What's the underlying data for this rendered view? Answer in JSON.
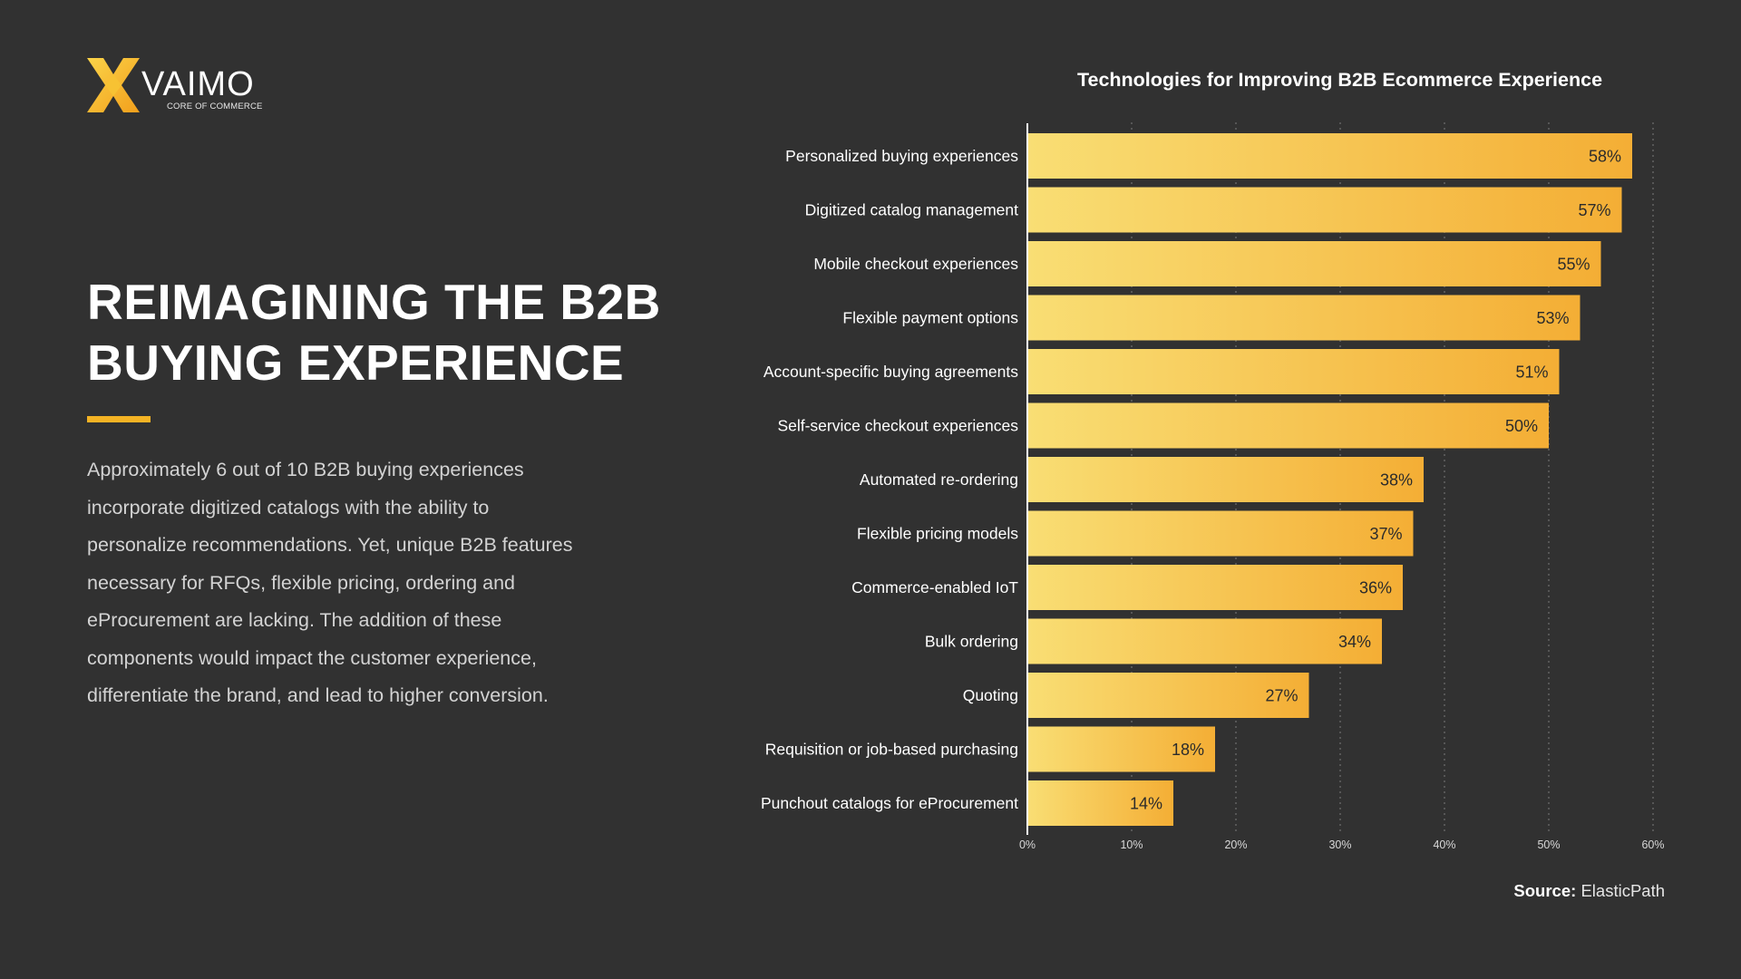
{
  "brand": {
    "name": "VAIMO",
    "tagline": "CORE OF COMMERCE",
    "logo_icon": "vaimo-x-icon",
    "accent_color": "#f4b324"
  },
  "headline": {
    "line1": "REIMAGINING THE B2B",
    "line2": "BUYING EXPERIENCE"
  },
  "body": {
    "lines": [
      "Approximately 6 out of 10 B2B buying experiences",
      "incorporate digitized catalogs with the ability to",
      "personalize recommendations. Yet, unique B2B features",
      "necessary for RFQs, flexible pricing, ordering and",
      "eProcurement are lacking. The addition of these",
      "components would impact the customer experience,",
      "differentiate the brand, and lead to higher conversion."
    ]
  },
  "source": {
    "label": "Source:",
    "value": "ElasticPath"
  },
  "colors": {
    "background": "#313131",
    "bar_light": "#f9de74",
    "bar_dark": "#f4ae35"
  },
  "chart_data": {
    "type": "bar",
    "orientation": "horizontal",
    "title": "Technologies for Improving B2B Ecommerce Experience",
    "categories": [
      "Personalized buying experiences",
      "Digitized catalog management",
      "Mobile checkout experiences",
      "Flexible payment options",
      "Account-specific buying agreements",
      "Self-service checkout experiences",
      "Automated re-ordering",
      "Flexible pricing models",
      "Commerce-enabled IoT",
      "Bulk ordering",
      "Quoting",
      "Requisition or job-based purchasing",
      "Punchout catalogs for eProcurement"
    ],
    "values": [
      58,
      57,
      55,
      53,
      51,
      50,
      38,
      37,
      36,
      34,
      27,
      18,
      14
    ],
    "value_labels": [
      "58%",
      "57%",
      "55%",
      "53%",
      "51%",
      "50%",
      "38%",
      "37%",
      "36%",
      "34%",
      "27%",
      "18%",
      "14%"
    ],
    "xlim": [
      0,
      60
    ],
    "x_ticks": [
      0,
      10,
      20,
      30,
      40,
      50,
      60
    ],
    "x_tick_labels": [
      "0%",
      "10%",
      "20%",
      "30%",
      "40%",
      "50%",
      "60%"
    ],
    "grid": "vertical dotted",
    "xlabel": "",
    "ylabel": ""
  }
}
